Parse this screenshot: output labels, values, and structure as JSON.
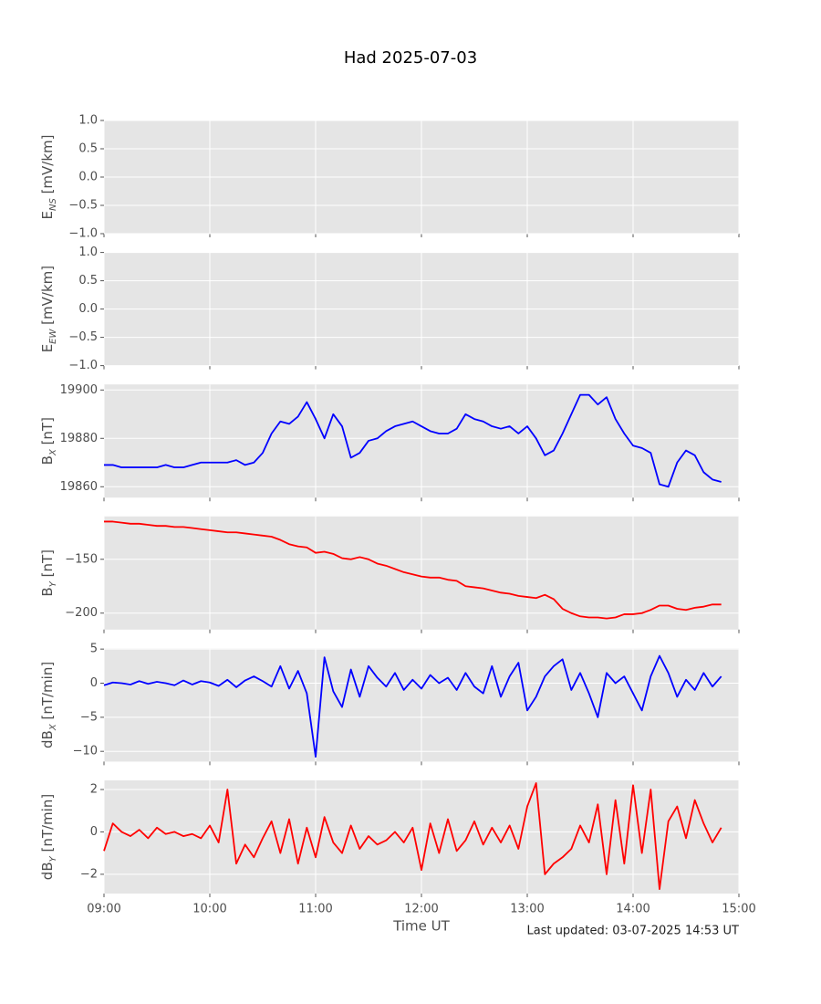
{
  "title": "Had 2025-07-03",
  "footnote": "Last updated: 03-07-2025 14:53 UT",
  "chart_data": [
    {
      "type": "line",
      "ylabel": [
        "E",
        "NS",
        " [mV/km]"
      ],
      "xlim": [
        "09:00",
        "15:00"
      ],
      "xticks": [
        "09:00",
        "10:00",
        "11:00",
        "12:00",
        "13:00",
        "14:00",
        "15:00"
      ],
      "ylim": [
        -1,
        1
      ],
      "yticks": [
        {
          "value": -1,
          "label": "−1.0"
        },
        {
          "value": -0.5,
          "label": "−0.5"
        },
        {
          "value": 0,
          "label": "0.0"
        },
        {
          "value": 0.5,
          "label": "0.5"
        },
        {
          "value": 1,
          "label": "1.0"
        }
      ],
      "grid": true
    },
    {
      "type": "line",
      "ylabel": [
        "E",
        "EW",
        " [mV/km]"
      ],
      "xlim": [
        "09:00",
        "15:00"
      ],
      "xticks": [
        "09:00",
        "10:00",
        "11:00",
        "12:00",
        "13:00",
        "14:00",
        "15:00"
      ],
      "ylim": [
        -1,
        1
      ],
      "yticks": [
        {
          "value": -1,
          "label": "−1.0"
        },
        {
          "value": -0.5,
          "label": "−0.5"
        },
        {
          "value": 0,
          "label": "0.0"
        },
        {
          "value": 0.5,
          "label": "0.5"
        },
        {
          "value": 1,
          "label": "1.0"
        }
      ],
      "grid": true
    },
    {
      "type": "line",
      "ylabel": [
        "B",
        "X",
        " [nT]"
      ],
      "xlim": [
        "09:00",
        "15:00"
      ],
      "xticks": [
        "09:00",
        "10:00",
        "11:00",
        "12:00",
        "13:00",
        "14:00",
        "15:00"
      ],
      "ylim": [
        19855.5,
        19902.3
      ],
      "yticks": [
        19860,
        19880,
        19900
      ],
      "grid": true,
      "x": [
        "09:00",
        "09:05",
        "09:10",
        "09:15",
        "09:20",
        "09:25",
        "09:30",
        "09:35",
        "09:40",
        "09:45",
        "09:50",
        "09:55",
        "10:00",
        "10:05",
        "10:10",
        "10:15",
        "10:20",
        "10:25",
        "10:30",
        "10:35",
        "10:40",
        "10:45",
        "10:50",
        "10:55",
        "11:00",
        "11:05",
        "11:10",
        "11:15",
        "11:20",
        "11:25",
        "11:30",
        "11:35",
        "11:40",
        "11:45",
        "11:50",
        "11:55",
        "12:00",
        "12:05",
        "12:10",
        "12:15",
        "12:20",
        "12:25",
        "12:30",
        "12:35",
        "12:40",
        "12:45",
        "12:50",
        "12:55",
        "13:00",
        "13:05",
        "13:10",
        "13:15",
        "13:20",
        "13:25",
        "13:30",
        "13:35",
        "13:40",
        "13:45",
        "13:50",
        "13:55",
        "14:00",
        "14:05",
        "14:10",
        "14:15",
        "14:20",
        "14:25",
        "14:30",
        "14:35",
        "14:40",
        "14:45",
        "14:50"
      ],
      "series": [
        {
          "color": "#0000ff",
          "values": [
            19869,
            19869,
            19868,
            19868,
            19868,
            19868,
            19868,
            19869,
            19868,
            19868,
            19869,
            19870,
            19870,
            19870,
            19870,
            19871,
            19869,
            19870,
            19874,
            19882,
            19887,
            19886,
            19889,
            19895,
            19888,
            19880,
            19890,
            19885,
            19872,
            19874,
            19879,
            19880,
            19883,
            19885,
            19886,
            19887,
            19885,
            19883,
            19882,
            19882,
            19884,
            19890,
            19888,
            19887,
            19885,
            19884,
            19885,
            19882,
            19885,
            19880,
            19873,
            19875,
            19882,
            19890,
            19898,
            19898,
            19894,
            19897,
            19888,
            19882,
            19877,
            19876,
            19874,
            19861,
            19860,
            19870,
            19875,
            19873,
            19866,
            19863,
            19862
          ]
        }
      ]
    },
    {
      "type": "line",
      "ylabel": [
        "B",
        "Y",
        " [nT]"
      ],
      "xlim": [
        "09:00",
        "15:00"
      ],
      "xticks": [
        "09:00",
        "10:00",
        "11:00",
        "12:00",
        "13:00",
        "14:00",
        "15:00"
      ],
      "ylim": [
        -215.3,
        -110.2
      ],
      "yticks": [
        {
          "value": -200,
          "label": "−200"
        },
        {
          "value": -150,
          "label": "−150"
        }
      ],
      "grid": true,
      "x": [
        "09:00",
        "09:05",
        "09:10",
        "09:15",
        "09:20",
        "09:25",
        "09:30",
        "09:35",
        "09:40",
        "09:45",
        "09:50",
        "09:55",
        "10:00",
        "10:05",
        "10:10",
        "10:15",
        "10:20",
        "10:25",
        "10:30",
        "10:35",
        "10:40",
        "10:45",
        "10:50",
        "10:55",
        "11:00",
        "11:05",
        "11:10",
        "11:15",
        "11:20",
        "11:25",
        "11:30",
        "11:35",
        "11:40",
        "11:45",
        "11:50",
        "11:55",
        "12:00",
        "12:05",
        "12:10",
        "12:15",
        "12:20",
        "12:25",
        "12:30",
        "12:35",
        "12:40",
        "12:45",
        "12:50",
        "12:55",
        "13:00",
        "13:05",
        "13:10",
        "13:15",
        "13:20",
        "13:25",
        "13:30",
        "13:35",
        "13:40",
        "13:45",
        "13:50",
        "13:55",
        "14:00",
        "14:05",
        "14:10",
        "14:15",
        "14:20",
        "14:25",
        "14:30",
        "14:35",
        "14:40",
        "14:45",
        "14:50"
      ],
      "series": [
        {
          "color": "#ff0000",
          "values": [
            -115,
            -115,
            -116,
            -117,
            -117,
            -118,
            -119,
            -119,
            -120,
            -120,
            -121,
            -122,
            -123,
            -124,
            -125,
            -125,
            -126,
            -127,
            -128,
            -129,
            -132,
            -136,
            -138,
            -139,
            -144,
            -143,
            -145,
            -149,
            -150,
            -148,
            -150,
            -154,
            -156,
            -159,
            -162,
            -164,
            -166,
            -167,
            -167,
            -169,
            -170,
            -175,
            -176,
            -177,
            -179,
            -181,
            -182,
            -184,
            -185,
            -186,
            -183,
            -187,
            -196,
            -200,
            -203,
            -204,
            -204,
            -205,
            -204,
            -201,
            -201,
            -200,
            -197,
            -193,
            -193,
            -196,
            -197,
            -195,
            -194,
            -192,
            -192
          ]
        }
      ]
    },
    {
      "type": "line",
      "ylabel": [
        "dB",
        "X",
        " [nT/min]"
      ],
      "xlim": [
        "09:00",
        "15:00"
      ],
      "xticks": [
        "09:00",
        "10:00",
        "11:00",
        "12:00",
        "13:00",
        "14:00",
        "15:00"
      ],
      "ylim": [
        -11.5,
        5.1
      ],
      "yticks": [
        {
          "value": -10,
          "label": "−10"
        },
        {
          "value": -5,
          "label": "−5"
        },
        0,
        5
      ],
      "grid": true,
      "x": [
        "09:00",
        "09:05",
        "09:10",
        "09:15",
        "09:20",
        "09:25",
        "09:30",
        "09:35",
        "09:40",
        "09:45",
        "09:50",
        "09:55",
        "10:00",
        "10:05",
        "10:10",
        "10:15",
        "10:20",
        "10:25",
        "10:30",
        "10:35",
        "10:40",
        "10:45",
        "10:50",
        "10:55",
        "11:00",
        "11:05",
        "11:10",
        "11:15",
        "11:20",
        "11:25",
        "11:30",
        "11:35",
        "11:40",
        "11:45",
        "11:50",
        "11:55",
        "12:00",
        "12:05",
        "12:10",
        "12:15",
        "12:20",
        "12:25",
        "12:30",
        "12:35",
        "12:40",
        "12:45",
        "12:50",
        "12:55",
        "13:00",
        "13:05",
        "13:10",
        "13:15",
        "13:20",
        "13:25",
        "13:30",
        "13:35",
        "13:40",
        "13:45",
        "13:50",
        "13:55",
        "14:00",
        "14:05",
        "14:10",
        "14:15",
        "14:20",
        "14:25",
        "14:30",
        "14:35",
        "14:40",
        "14:45",
        "14:50"
      ],
      "series": [
        {
          "color": "#0000ff",
          "values": [
            -0.3,
            0.1,
            0.0,
            -0.2,
            0.3,
            -0.1,
            0.2,
            0.0,
            -0.3,
            0.4,
            -0.2,
            0.3,
            0.1,
            -0.4,
            0.5,
            -0.6,
            0.4,
            1.0,
            0.3,
            -0.5,
            2.5,
            -0.8,
            1.8,
            -1.5,
            -10.8,
            3.8,
            -1.2,
            -3.5,
            2.0,
            -2.0,
            2.5,
            0.8,
            -0.5,
            1.5,
            -1.0,
            0.5,
            -0.8,
            1.2,
            0.0,
            0.8,
            -1.0,
            1.5,
            -0.5,
            -1.5,
            2.5,
            -2.0,
            1.0,
            3.0,
            -4.0,
            -2.0,
            1.0,
            2.5,
            3.5,
            -1.0,
            1.5,
            -1.5,
            -5.0,
            1.5,
            0.0,
            1.0,
            -1.5,
            -4.0,
            1.0,
            4.0,
            1.5,
            -2.0,
            0.5,
            -1.0,
            1.5,
            -0.5,
            1.0
          ]
        }
      ]
    },
    {
      "type": "line",
      "ylabel": [
        "dB",
        "Y",
        " [nT/min]"
      ],
      "xlabel": "Time UT",
      "xlim": [
        "09:00",
        "15:00"
      ],
      "xticks": [
        "09:00",
        "10:00",
        "11:00",
        "12:00",
        "13:00",
        "14:00",
        "15:00"
      ],
      "show_xtick_labels": true,
      "ylim": [
        -2.91,
        2.43
      ],
      "yticks": [
        {
          "value": -2,
          "label": "−2"
        },
        0,
        2
      ],
      "grid": true,
      "x": [
        "09:00",
        "09:05",
        "09:10",
        "09:15",
        "09:20",
        "09:25",
        "09:30",
        "09:35",
        "09:40",
        "09:45",
        "09:50",
        "09:55",
        "10:00",
        "10:05",
        "10:10",
        "10:15",
        "10:20",
        "10:25",
        "10:30",
        "10:35",
        "10:40",
        "10:45",
        "10:50",
        "10:55",
        "11:00",
        "11:05",
        "11:10",
        "11:15",
        "11:20",
        "11:25",
        "11:30",
        "11:35",
        "11:40",
        "11:45",
        "11:50",
        "11:55",
        "12:00",
        "12:05",
        "12:10",
        "12:15",
        "12:20",
        "12:25",
        "12:30",
        "12:35",
        "12:40",
        "12:45",
        "12:50",
        "12:55",
        "13:00",
        "13:05",
        "13:10",
        "13:15",
        "13:20",
        "13:25",
        "13:30",
        "13:35",
        "13:40",
        "13:45",
        "13:50",
        "13:55",
        "14:00",
        "14:05",
        "14:10",
        "14:15",
        "14:20",
        "14:25",
        "14:30",
        "14:35",
        "14:40",
        "14:45",
        "14:50"
      ],
      "series": [
        {
          "color": "#ff0000",
          "values": [
            -0.9,
            0.4,
            0.0,
            -0.2,
            0.1,
            -0.3,
            0.2,
            -0.1,
            0.0,
            -0.2,
            -0.1,
            -0.3,
            0.3,
            -0.5,
            2.0,
            -1.5,
            -0.6,
            -1.2,
            -0.3,
            0.5,
            -1.0,
            0.6,
            -1.5,
            0.2,
            -1.2,
            0.7,
            -0.5,
            -1.0,
            0.3,
            -0.8,
            -0.2,
            -0.6,
            -0.4,
            0.0,
            -0.5,
            0.2,
            -1.8,
            0.4,
            -1.0,
            0.6,
            -0.9,
            -0.4,
            0.5,
            -0.6,
            0.2,
            -0.5,
            0.3,
            -0.8,
            1.2,
            2.3,
            -2.0,
            -1.5,
            -1.2,
            -0.8,
            0.3,
            -0.5,
            1.3,
            -2.0,
            1.5,
            -1.5,
            2.2,
            -1.0,
            2.0,
            -2.7,
            0.5,
            1.2,
            -0.3,
            1.5,
            0.4,
            -0.5,
            0.2
          ]
        }
      ]
    }
  ]
}
